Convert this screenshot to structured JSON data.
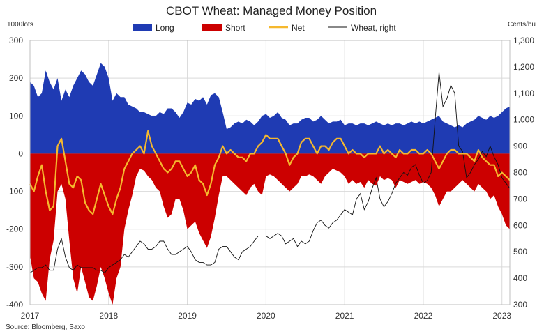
{
  "chart_data": {
    "type": "area",
    "title": "CBOT Wheat: Managed Money Position",
    "left_unit": "1000lots",
    "right_unit": "Cents/bu",
    "source": "Source: Bloomberg, Saxo",
    "x_ticks": [
      "2017",
      "2018",
      "2019",
      "2020",
      "2021",
      "2022",
      "2023"
    ],
    "y_left_ticks": [
      "300",
      "200",
      "100",
      "0",
      "-100",
      "-200",
      "-300",
      "-400"
    ],
    "y_right_ticks": [
      "1,300",
      "1,200",
      "1,100",
      "1,000",
      "900",
      "800",
      "700",
      "600",
      "500",
      "400",
      "300"
    ],
    "ylim_left": [
      -400,
      300
    ],
    "ylim_right": [
      300,
      1300
    ],
    "xlim": [
      2017.0,
      2023.1
    ],
    "grid": true,
    "legend_position": "top",
    "colors": {
      "long": "#1f3bb3",
      "short": "#cc0000",
      "net": "#f5b82e",
      "wheat": "#111111"
    },
    "series": [
      {
        "name": "Long",
        "axis": "left",
        "x": [
          2017.0,
          2017.05,
          2017.1,
          2017.15,
          2017.2,
          2017.25,
          2017.3,
          2017.35,
          2017.4,
          2017.45,
          2017.5,
          2017.55,
          2017.6,
          2017.65,
          2017.7,
          2017.75,
          2017.8,
          2017.85,
          2017.9,
          2017.95,
          2018.0,
          2018.05,
          2018.1,
          2018.15,
          2018.2,
          2018.25,
          2018.3,
          2018.35,
          2018.4,
          2018.45,
          2018.5,
          2018.55,
          2018.6,
          2018.65,
          2018.7,
          2018.75,
          2018.8,
          2018.85,
          2018.9,
          2018.95,
          2019.0,
          2019.05,
          2019.1,
          2019.15,
          2019.2,
          2019.25,
          2019.3,
          2019.35,
          2019.4,
          2019.45,
          2019.5,
          2019.55,
          2019.6,
          2019.65,
          2019.7,
          2019.75,
          2019.8,
          2019.85,
          2019.9,
          2019.95,
          2020.0,
          2020.05,
          2020.1,
          2020.15,
          2020.2,
          2020.25,
          2020.3,
          2020.35,
          2020.4,
          2020.45,
          2020.5,
          2020.55,
          2020.6,
          2020.65,
          2020.7,
          2020.75,
          2020.8,
          2020.85,
          2020.9,
          2020.95,
          2021.0,
          2021.05,
          2021.1,
          2021.15,
          2021.2,
          2021.25,
          2021.3,
          2021.35,
          2021.4,
          2021.45,
          2021.5,
          2021.55,
          2021.6,
          2021.65,
          2021.7,
          2021.75,
          2021.8,
          2021.85,
          2021.9,
          2021.95,
          2022.0,
          2022.05,
          2022.1,
          2022.15,
          2022.2,
          2022.25,
          2022.3,
          2022.35,
          2022.4,
          2022.45,
          2022.5,
          2022.55,
          2022.6,
          2022.65,
          2022.7,
          2022.75,
          2022.8,
          2022.85,
          2022.9,
          2022.95,
          2023.0,
          2023.05,
          2023.1
        ],
        "values": [
          190,
          180,
          150,
          160,
          220,
          190,
          170,
          200,
          140,
          170,
          150,
          180,
          200,
          220,
          210,
          190,
          180,
          210,
          240,
          230,
          200,
          140,
          160,
          150,
          150,
          130,
          125,
          120,
          110,
          110,
          105,
          100,
          100,
          110,
          105,
          120,
          120,
          110,
          95,
          110,
          135,
          130,
          145,
          140,
          150,
          130,
          155,
          160,
          150,
          110,
          65,
          70,
          80,
          85,
          80,
          90,
          85,
          75,
          85,
          100,
          105,
          95,
          100,
          110,
          95,
          90,
          75,
          80,
          80,
          90,
          95,
          95,
          85,
          90,
          100,
          90,
          80,
          85,
          85,
          90,
          75,
          80,
          80,
          75,
          80,
          80,
          75,
          80,
          85,
          80,
          75,
          80,
          75,
          80,
          80,
          75,
          80,
          85,
          80,
          85,
          80,
          85,
          90,
          95,
          100,
          85,
          80,
          75,
          70,
          75,
          70,
          80,
          85,
          90,
          100,
          95,
          90,
          100,
          95,
          100,
          110,
          120,
          125
        ]
      },
      {
        "name": "Short",
        "axis": "left",
        "x": [
          2017.0,
          2017.05,
          2017.1,
          2017.15,
          2017.2,
          2017.25,
          2017.3,
          2017.35,
          2017.4,
          2017.45,
          2017.5,
          2017.55,
          2017.6,
          2017.65,
          2017.7,
          2017.75,
          2017.8,
          2017.85,
          2017.9,
          2017.95,
          2018.0,
          2018.05,
          2018.1,
          2018.15,
          2018.2,
          2018.25,
          2018.3,
          2018.35,
          2018.4,
          2018.45,
          2018.5,
          2018.55,
          2018.6,
          2018.65,
          2018.7,
          2018.75,
          2018.8,
          2018.85,
          2018.9,
          2018.95,
          2019.0,
          2019.05,
          2019.1,
          2019.15,
          2019.2,
          2019.25,
          2019.3,
          2019.35,
          2019.4,
          2019.45,
          2019.5,
          2019.55,
          2019.6,
          2019.65,
          2019.7,
          2019.75,
          2019.8,
          2019.85,
          2019.9,
          2019.95,
          2020.0,
          2020.05,
          2020.1,
          2020.15,
          2020.2,
          2020.25,
          2020.3,
          2020.35,
          2020.4,
          2020.45,
          2020.5,
          2020.55,
          2020.6,
          2020.65,
          2020.7,
          2020.75,
          2020.8,
          2020.85,
          2020.9,
          2020.95,
          2021.0,
          2021.05,
          2021.1,
          2021.15,
          2021.2,
          2021.25,
          2021.3,
          2021.35,
          2021.4,
          2021.45,
          2021.5,
          2021.55,
          2021.6,
          2021.65,
          2021.7,
          2021.75,
          2021.8,
          2021.85,
          2021.9,
          2021.95,
          2022.0,
          2022.05,
          2022.1,
          2022.15,
          2022.2,
          2022.25,
          2022.3,
          2022.35,
          2022.4,
          2022.45,
          2022.5,
          2022.55,
          2022.6,
          2022.65,
          2022.7,
          2022.75,
          2022.8,
          2022.85,
          2022.9,
          2022.95,
          2023.0,
          2023.05,
          2023.1
        ],
        "values": [
          -270,
          -330,
          -340,
          -370,
          -390,
          -280,
          -230,
          -100,
          -80,
          -120,
          -230,
          -330,
          -370,
          -300,
          -340,
          -380,
          -390,
          -350,
          -300,
          -330,
          -370,
          -400,
          -330,
          -300,
          -200,
          -150,
          -110,
          -60,
          -40,
          -45,
          -60,
          -70,
          -90,
          -100,
          -140,
          -170,
          -160,
          -120,
          -120,
          -150,
          -200,
          -190,
          -180,
          -210,
          -230,
          -250,
          -220,
          -170,
          -110,
          -60,
          -60,
          -70,
          -80,
          -90,
          -100,
          -110,
          -90,
          -80,
          -100,
          -110,
          -60,
          -55,
          -60,
          -70,
          -80,
          -90,
          -100,
          -90,
          -80,
          -60,
          -60,
          -55,
          -60,
          -70,
          -80,
          -60,
          -50,
          -40,
          -45,
          -50,
          -60,
          -80,
          -70,
          -80,
          -75,
          -90,
          -70,
          -80,
          -85,
          -60,
          -70,
          -65,
          -70,
          -90,
          -70,
          -75,
          -80,
          -75,
          -70,
          -80,
          -75,
          -80,
          -90,
          -110,
          -140,
          -120,
          -100,
          -100,
          -90,
          -80,
          -70,
          -80,
          -90,
          -100,
          -80,
          -90,
          -100,
          -120,
          -110,
          -140,
          -160,
          -190,
          -200
        ]
      },
      {
        "name": "Net",
        "axis": "left",
        "x": [
          2017.0,
          2017.05,
          2017.1,
          2017.15,
          2017.2,
          2017.25,
          2017.3,
          2017.35,
          2017.4,
          2017.45,
          2017.5,
          2017.55,
          2017.6,
          2017.65,
          2017.7,
          2017.75,
          2017.8,
          2017.85,
          2017.9,
          2017.95,
          2018.0,
          2018.05,
          2018.1,
          2018.15,
          2018.2,
          2018.25,
          2018.3,
          2018.35,
          2018.4,
          2018.45,
          2018.5,
          2018.55,
          2018.6,
          2018.65,
          2018.7,
          2018.75,
          2018.8,
          2018.85,
          2018.9,
          2018.95,
          2019.0,
          2019.05,
          2019.1,
          2019.15,
          2019.2,
          2019.25,
          2019.3,
          2019.35,
          2019.4,
          2019.45,
          2019.5,
          2019.55,
          2019.6,
          2019.65,
          2019.7,
          2019.75,
          2019.8,
          2019.85,
          2019.9,
          2019.95,
          2020.0,
          2020.05,
          2020.1,
          2020.15,
          2020.2,
          2020.25,
          2020.3,
          2020.35,
          2020.4,
          2020.45,
          2020.5,
          2020.55,
          2020.6,
          2020.65,
          2020.7,
          2020.75,
          2020.8,
          2020.85,
          2020.9,
          2020.95,
          2021.0,
          2021.05,
          2021.1,
          2021.15,
          2021.2,
          2021.25,
          2021.3,
          2021.35,
          2021.4,
          2021.45,
          2021.5,
          2021.55,
          2021.6,
          2021.65,
          2021.7,
          2021.75,
          2021.8,
          2021.85,
          2021.9,
          2021.95,
          2022.0,
          2022.05,
          2022.1,
          2022.15,
          2022.2,
          2022.25,
          2022.3,
          2022.35,
          2022.4,
          2022.45,
          2022.5,
          2022.55,
          2022.6,
          2022.65,
          2022.7,
          2022.75,
          2022.8,
          2022.85,
          2022.9,
          2022.95,
          2023.0,
          2023.05,
          2023.1
        ],
        "values": [
          -80,
          -100,
          -60,
          -30,
          -100,
          -150,
          -140,
          20,
          40,
          -20,
          -80,
          -90,
          -60,
          -70,
          -130,
          -150,
          -160,
          -120,
          -80,
          -110,
          -140,
          -160,
          -120,
          -90,
          -40,
          -20,
          0,
          10,
          20,
          0,
          60,
          20,
          0,
          -20,
          -40,
          -50,
          -40,
          -20,
          -20,
          -40,
          -60,
          -50,
          -30,
          -70,
          -80,
          -110,
          -80,
          -30,
          -10,
          20,
          0,
          10,
          0,
          -10,
          -10,
          -20,
          0,
          0,
          20,
          30,
          50,
          40,
          40,
          40,
          20,
          0,
          -30,
          -10,
          0,
          30,
          40,
          40,
          20,
          0,
          20,
          20,
          10,
          30,
          40,
          40,
          20,
          0,
          10,
          0,
          0,
          -10,
          0,
          0,
          0,
          20,
          0,
          10,
          0,
          -10,
          10,
          0,
          0,
          10,
          10,
          0,
          0,
          10,
          0,
          -20,
          -40,
          -20,
          0,
          10,
          10,
          0,
          0,
          0,
          -10,
          -20,
          10,
          -10,
          -20,
          -30,
          -30,
          -60,
          -50,
          -60,
          -70
        ]
      },
      {
        "name": "Wheat, right",
        "axis": "right",
        "x": [
          2017.0,
          2017.05,
          2017.1,
          2017.15,
          2017.2,
          2017.25,
          2017.3,
          2017.35,
          2017.4,
          2017.45,
          2017.5,
          2017.55,
          2017.6,
          2017.65,
          2017.7,
          2017.75,
          2017.8,
          2017.85,
          2017.9,
          2017.95,
          2018.0,
          2018.05,
          2018.1,
          2018.15,
          2018.2,
          2018.25,
          2018.3,
          2018.35,
          2018.4,
          2018.45,
          2018.5,
          2018.55,
          2018.6,
          2018.65,
          2018.7,
          2018.75,
          2018.8,
          2018.85,
          2018.9,
          2018.95,
          2019.0,
          2019.05,
          2019.1,
          2019.15,
          2019.2,
          2019.25,
          2019.3,
          2019.35,
          2019.4,
          2019.45,
          2019.5,
          2019.55,
          2019.6,
          2019.65,
          2019.7,
          2019.75,
          2019.8,
          2019.85,
          2019.9,
          2019.95,
          2020.0,
          2020.05,
          2020.1,
          2020.15,
          2020.2,
          2020.25,
          2020.3,
          2020.35,
          2020.4,
          2020.45,
          2020.5,
          2020.55,
          2020.6,
          2020.65,
          2020.7,
          2020.75,
          2020.8,
          2020.85,
          2020.9,
          2020.95,
          2021.0,
          2021.05,
          2021.1,
          2021.15,
          2021.2,
          2021.25,
          2021.3,
          2021.35,
          2021.4,
          2021.45,
          2021.5,
          2021.55,
          2021.6,
          2021.65,
          2021.7,
          2021.75,
          2021.8,
          2021.85,
          2021.9,
          2021.95,
          2022.0,
          2022.05,
          2022.1,
          2022.15,
          2022.2,
          2022.25,
          2022.3,
          2022.35,
          2022.4,
          2022.45,
          2022.5,
          2022.55,
          2022.6,
          2022.65,
          2022.7,
          2022.75,
          2022.8,
          2022.85,
          2022.9,
          2022.95,
          2023.0,
          2023.05,
          2023.1
        ],
        "values": [
          420,
          430,
          440,
          440,
          450,
          430,
          430,
          510,
          550,
          480,
          440,
          430,
          450,
          440,
          440,
          440,
          440,
          430,
          430,
          420,
          440,
          450,
          460,
          470,
          490,
          480,
          500,
          520,
          540,
          530,
          510,
          510,
          520,
          540,
          540,
          510,
          490,
          490,
          500,
          510,
          520,
          500,
          470,
          460,
          460,
          450,
          450,
          460,
          510,
          520,
          520,
          500,
          480,
          470,
          500,
          510,
          520,
          540,
          560,
          560,
          560,
          550,
          560,
          570,
          560,
          530,
          540,
          550,
          520,
          540,
          530,
          540,
          580,
          610,
          620,
          600,
          590,
          610,
          620,
          640,
          660,
          650,
          640,
          700,
          720,
          660,
          690,
          740,
          780,
          700,
          670,
          690,
          720,
          760,
          780,
          800,
          790,
          820,
          830,
          790,
          760,
          770,
          800,
          1000,
          1180,
          1050,
          1080,
          1130,
          1100,
          900,
          880,
          780,
          800,
          830,
          850,
          880,
          860,
          900,
          860,
          830,
          780,
          760,
          740
        ]
      }
    ],
    "legend": [
      {
        "label": "Long",
        "kind": "area",
        "series": "Long"
      },
      {
        "label": "Short",
        "kind": "area",
        "series": "Short"
      },
      {
        "label": "Net",
        "kind": "line",
        "series": "Net"
      },
      {
        "label": "Wheat, right",
        "kind": "line",
        "series": "Wheat, right"
      }
    ]
  }
}
